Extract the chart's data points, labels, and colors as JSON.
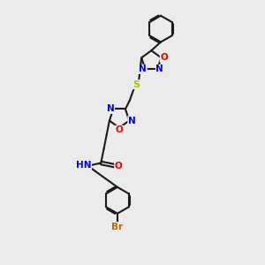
{
  "bg_color": "#ebebeb",
  "line_color": "#1a1a1a",
  "bond_width": 1.5,
  "atom_colors": {
    "N": "#0000ee",
    "O": "#ee0000",
    "S": "#bbbb00",
    "Br": "#bb6600",
    "C": "#1a1a1a",
    "H": "#777777"
  },
  "font_size": 7.5,
  "figsize": [
    3.0,
    3.0
  ],
  "dpi": 100,
  "xlim": [
    0,
    10
  ],
  "ylim": [
    0,
    14
  ]
}
